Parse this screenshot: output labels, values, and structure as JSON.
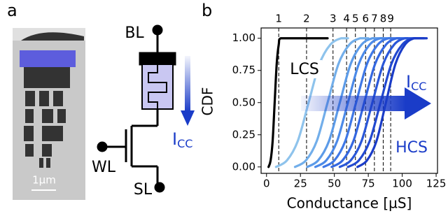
{
  "panel_a": {
    "label": "a",
    "bl": "BL",
    "wl": "WL",
    "sl": "SL",
    "scale": "1µm",
    "current": "I",
    "current_sub": "CC"
  },
  "chart_data": {
    "type": "line",
    "panel_label": "b",
    "x_label": "Conductance [µS]",
    "y_label": "CDF",
    "xlim": [
      -4,
      126
    ],
    "ylim": [
      -0.05,
      1.08
    ],
    "xticks": [
      0,
      25,
      50,
      75,
      100,
      125
    ],
    "yticks": [
      {
        "value": 0,
        "label": "0.00"
      },
      {
        "value": 0.25,
        "label": "0.25"
      },
      {
        "value": 0.5,
        "label": "0.50"
      },
      {
        "value": 0.75,
        "label": "0.75"
      },
      {
        "value": 1,
        "label": "1.00"
      }
    ],
    "vlines": [
      {
        "x": 9,
        "label": "1"
      },
      {
        "x": 29.5,
        "label": "2"
      },
      {
        "x": 49,
        "label": "3"
      },
      {
        "x": 59,
        "label": "4"
      },
      {
        "x": 65.5,
        "label": "5"
      },
      {
        "x": 73,
        "label": "6"
      },
      {
        "x": 79.5,
        "label": "7"
      },
      {
        "x": 86,
        "label": "8"
      },
      {
        "x": 91.5,
        "label": "9"
      }
    ],
    "annotations": {
      "lcs": "LCS",
      "hcs": "HCS",
      "current": "I",
      "current_sub": "CC"
    },
    "series": [
      {
        "color": "#000000",
        "x": [
          1.5,
          3,
          4.5,
          6,
          7.5,
          9,
          10.5,
          20,
          30,
          40,
          45
        ],
        "values": [
          0,
          0.05,
          0.2,
          0.5,
          0.8,
          0.95,
          1,
          1,
          1,
          1,
          1
        ]
      },
      {
        "color": "#8ec3ec",
        "x": [
          7,
          15,
          23,
          31,
          39,
          47,
          55,
          60
        ],
        "values": [
          0,
          0.05,
          0.2,
          0.5,
          0.8,
          0.95,
          1,
          1
        ]
      },
      {
        "color": "#72aeea",
        "x": [
          21,
          29,
          37,
          45,
          53,
          61,
          69,
          75
        ],
        "values": [
          0,
          0.05,
          0.2,
          0.5,
          0.8,
          0.95,
          1,
          1
        ]
      },
      {
        "color": "#5c9be8",
        "x": [
          30,
          38,
          46,
          54,
          62,
          70,
          78,
          85
        ],
        "values": [
          0,
          0.05,
          0.2,
          0.5,
          0.8,
          0.95,
          1,
          1
        ]
      },
      {
        "color": "#4c8ae8",
        "x": [
          36,
          44,
          52,
          60,
          68,
          76,
          84,
          92
        ],
        "values": [
          0,
          0.05,
          0.2,
          0.5,
          0.8,
          0.95,
          1,
          1
        ]
      },
      {
        "color": "#3f78e6",
        "x": [
          42,
          50,
          58,
          66,
          74,
          82,
          90,
          98
        ],
        "values": [
          0,
          0.05,
          0.2,
          0.5,
          0.8,
          0.95,
          1,
          1
        ]
      },
      {
        "color": "#3467e0",
        "x": [
          48,
          56,
          64,
          72,
          80,
          88,
          96,
          104
        ],
        "values": [
          0,
          0.05,
          0.2,
          0.5,
          0.8,
          0.95,
          1,
          1
        ]
      },
      {
        "color": "#2a57d8",
        "x": [
          54,
          62,
          70,
          78,
          86,
          94,
          102,
          110
        ],
        "values": [
          0,
          0.05,
          0.2,
          0.5,
          0.8,
          0.95,
          1,
          1
        ]
      },
      {
        "color": "#2249d0",
        "x": [
          60,
          68,
          76,
          84,
          92,
          100,
          108,
          116
        ],
        "values": [
          0,
          0.05,
          0.2,
          0.5,
          0.8,
          0.95,
          1,
          1
        ]
      },
      {
        "color": "#1a3cc8",
        "x": [
          67,
          74,
          81,
          88,
          95,
          102,
          109,
          118
        ],
        "values": [
          0,
          0.05,
          0.2,
          0.5,
          0.8,
          0.95,
          1,
          1
        ]
      }
    ]
  }
}
